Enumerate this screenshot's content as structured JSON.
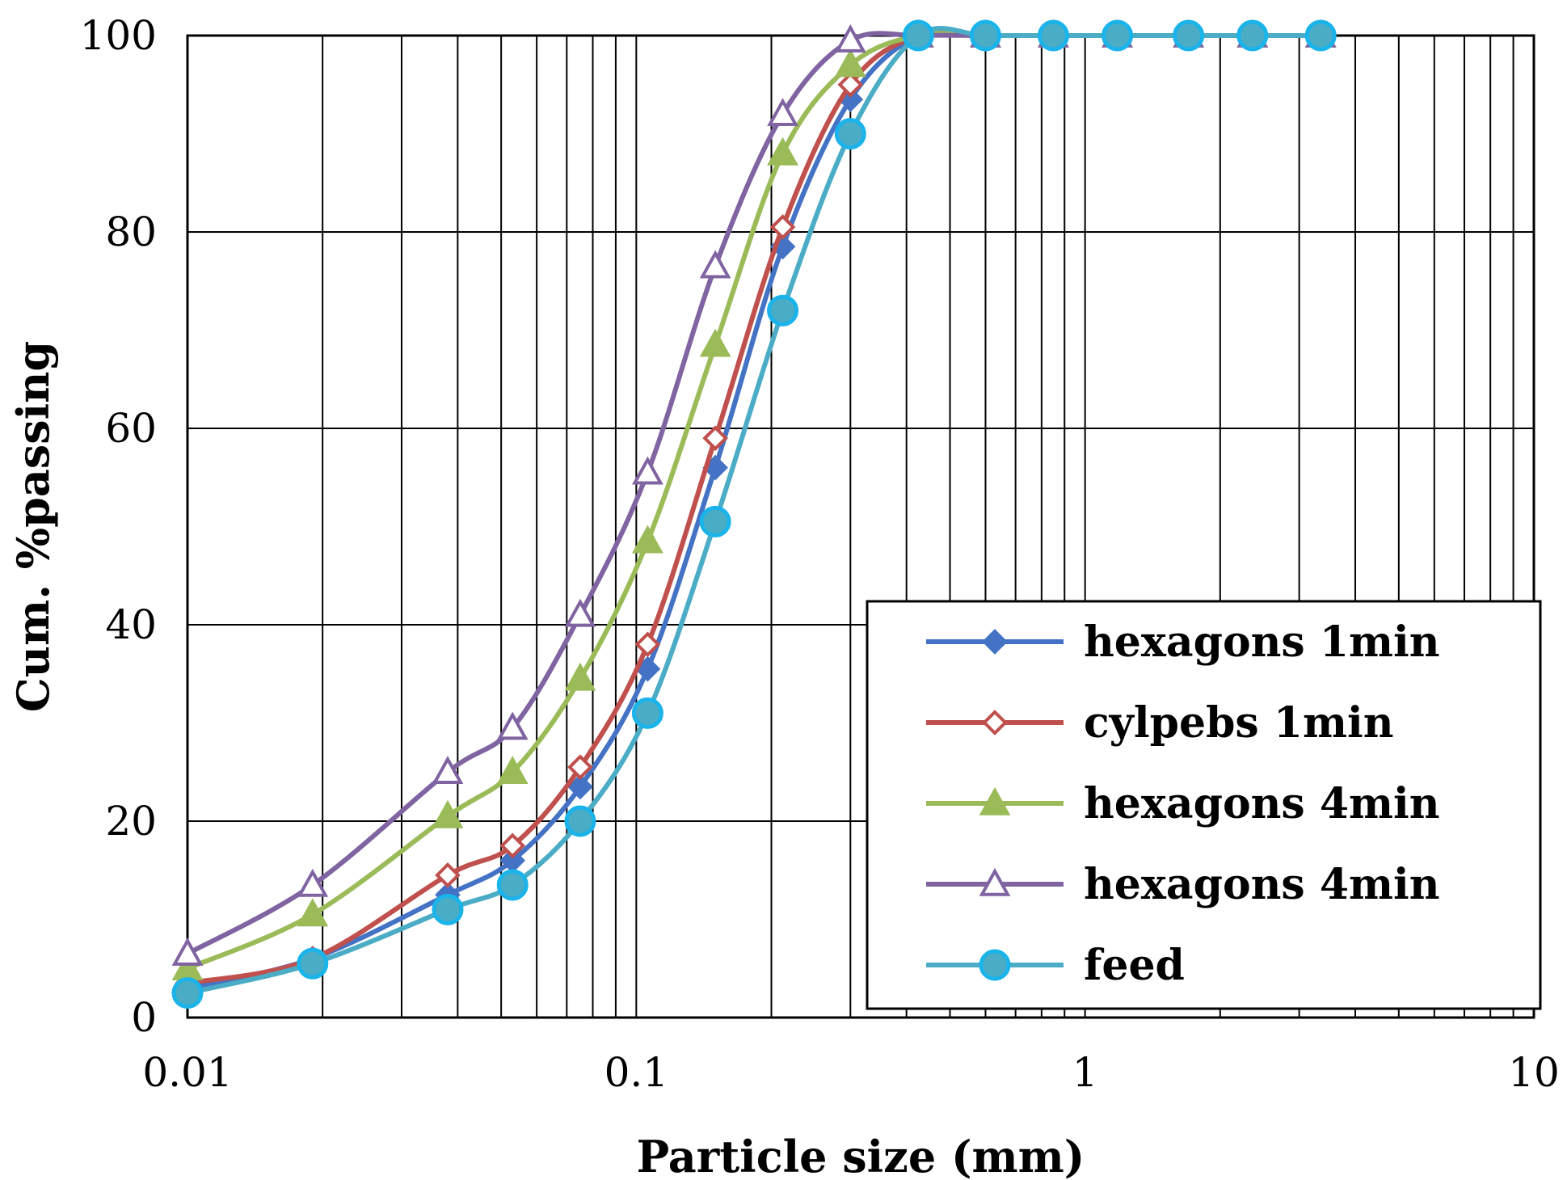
{
  "chart_data": {
    "type": "line",
    "title": "",
    "xlabel": "Particle size (mm)",
    "ylabel": "Cum. %passing",
    "xscale": "log",
    "xlim": [
      0.01,
      10
    ],
    "ylim": [
      0,
      100
    ],
    "grid": true,
    "legend_position": "bottom-right",
    "x_tick_labels": [
      "0.01",
      "0.1",
      "1",
      "10"
    ],
    "y_tick_labels": [
      "0",
      "20",
      "40",
      "60",
      "80",
      "100"
    ],
    "x": [
      0.01,
      0.019,
      0.038,
      0.053,
      0.075,
      0.106,
      0.15,
      0.212,
      0.3,
      0.425,
      0.6,
      0.85,
      1.18,
      1.7,
      2.36,
      3.35
    ],
    "series": [
      {
        "name": "hexagons 1min",
        "color": "#4472C4",
        "marker": "diamond-filled",
        "values": [
          3,
          6,
          12.5,
          16,
          23.5,
          35.5,
          56,
          78.5,
          93.5,
          100,
          100,
          100,
          100,
          100,
          100,
          100
        ]
      },
      {
        "name": "cylpebs 1min",
        "color": "#C0504D",
        "marker": "diamond-open",
        "values": [
          3.5,
          6,
          14.5,
          17.5,
          25.5,
          38,
          59,
          80.5,
          95,
          100,
          100,
          100,
          100,
          100,
          100,
          100
        ]
      },
      {
        "name": "hexagons 4min",
        "color": "#9BBB59",
        "marker": "triangle-filled",
        "values": [
          5,
          10.5,
          20.5,
          25,
          34.5,
          48.5,
          68.5,
          88,
          97,
          100,
          100,
          100,
          100,
          100,
          100,
          100
        ]
      },
      {
        "name": "hexagons 4min",
        "color": "#8064A2",
        "marker": "triangle-open",
        "values": [
          6.5,
          13.5,
          25,
          29.5,
          41,
          55.5,
          76.5,
          92,
          99.5,
          100,
          100,
          100,
          100,
          100,
          100,
          100
        ]
      },
      {
        "name": "feed",
        "color": "#4BACC6",
        "marker": "circle-filled",
        "values": [
          2.5,
          5.5,
          11,
          13.5,
          20,
          31,
          50.5,
          72,
          90,
          100,
          100,
          100,
          100,
          100,
          100,
          100
        ]
      }
    ]
  }
}
